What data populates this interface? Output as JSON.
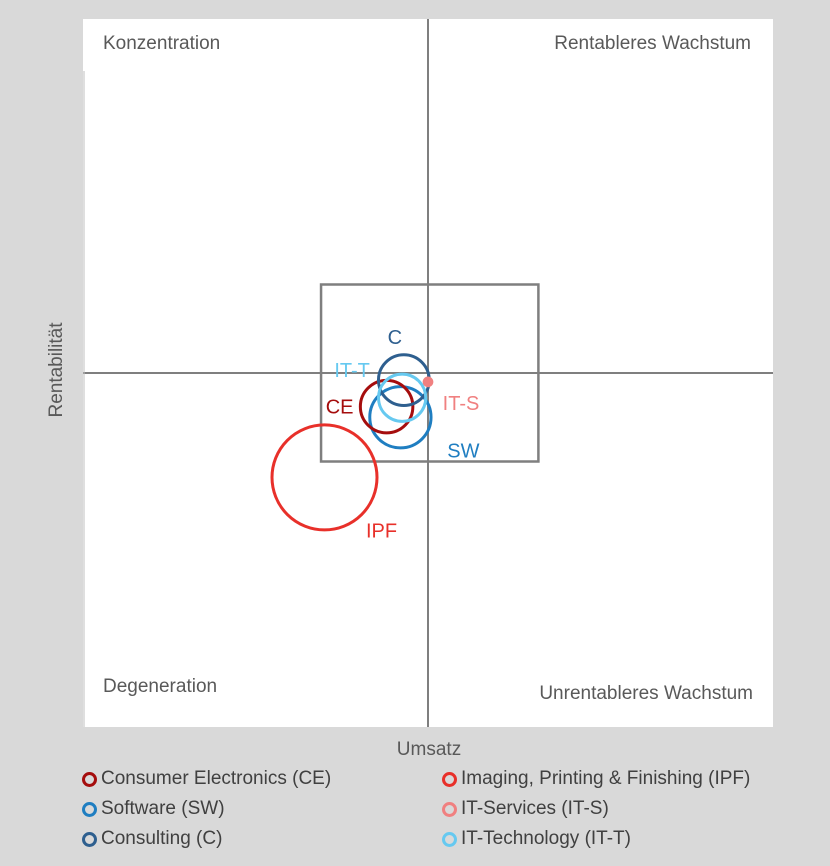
{
  "chart_data": {
    "type": "scatter",
    "variant": "bubble",
    "title": "",
    "xlabel": "Umsatz",
    "ylabel": "Rentabilität",
    "xlim": [
      -10,
      10
    ],
    "ylim": [
      -10,
      10
    ],
    "grid": false,
    "legend_position": "bottom",
    "quadrants": {
      "top_left": "Konzentration",
      "top_right": "Rentableres Wachstum",
      "bottom_left": "Degeneration",
      "bottom_right": "Unrentableres Wachstum"
    },
    "focus_box": {
      "x": [
        -3.1,
        3.2
      ],
      "y": [
        -2.5,
        2.5
      ]
    },
    "series": [
      {
        "name": "Consumer Electronics (CE)",
        "abbr": "CE",
        "color": "#a50d0d",
        "x": -1.2,
        "y": -0.95,
        "size": 1.5
      },
      {
        "name": "Imaging, Printing & Finishing (IPF)",
        "abbr": "IPF",
        "color": "#e8302a",
        "x": -3.0,
        "y": -2.95,
        "size": 3.0
      },
      {
        "name": "Software (SW)",
        "abbr": "SW",
        "color": "#1f7ec1",
        "x": -0.8,
        "y": -1.25,
        "size": 1.75
      },
      {
        "name": "IT-Services (IT-S)",
        "abbr": "IT-S",
        "color": "#f08080",
        "x": 0.0,
        "y": -0.25,
        "size": 0.22
      },
      {
        "name": "Consulting (C)",
        "abbr": "C",
        "color": "#2e5f8f",
        "x": -0.7,
        "y": -0.2,
        "size": 1.45
      },
      {
        "name": "IT-Technology (IT-T)",
        "abbr": "IT-T",
        "color": "#66c9f0",
        "x": -0.75,
        "y": -0.7,
        "size": 1.35
      }
    ]
  }
}
